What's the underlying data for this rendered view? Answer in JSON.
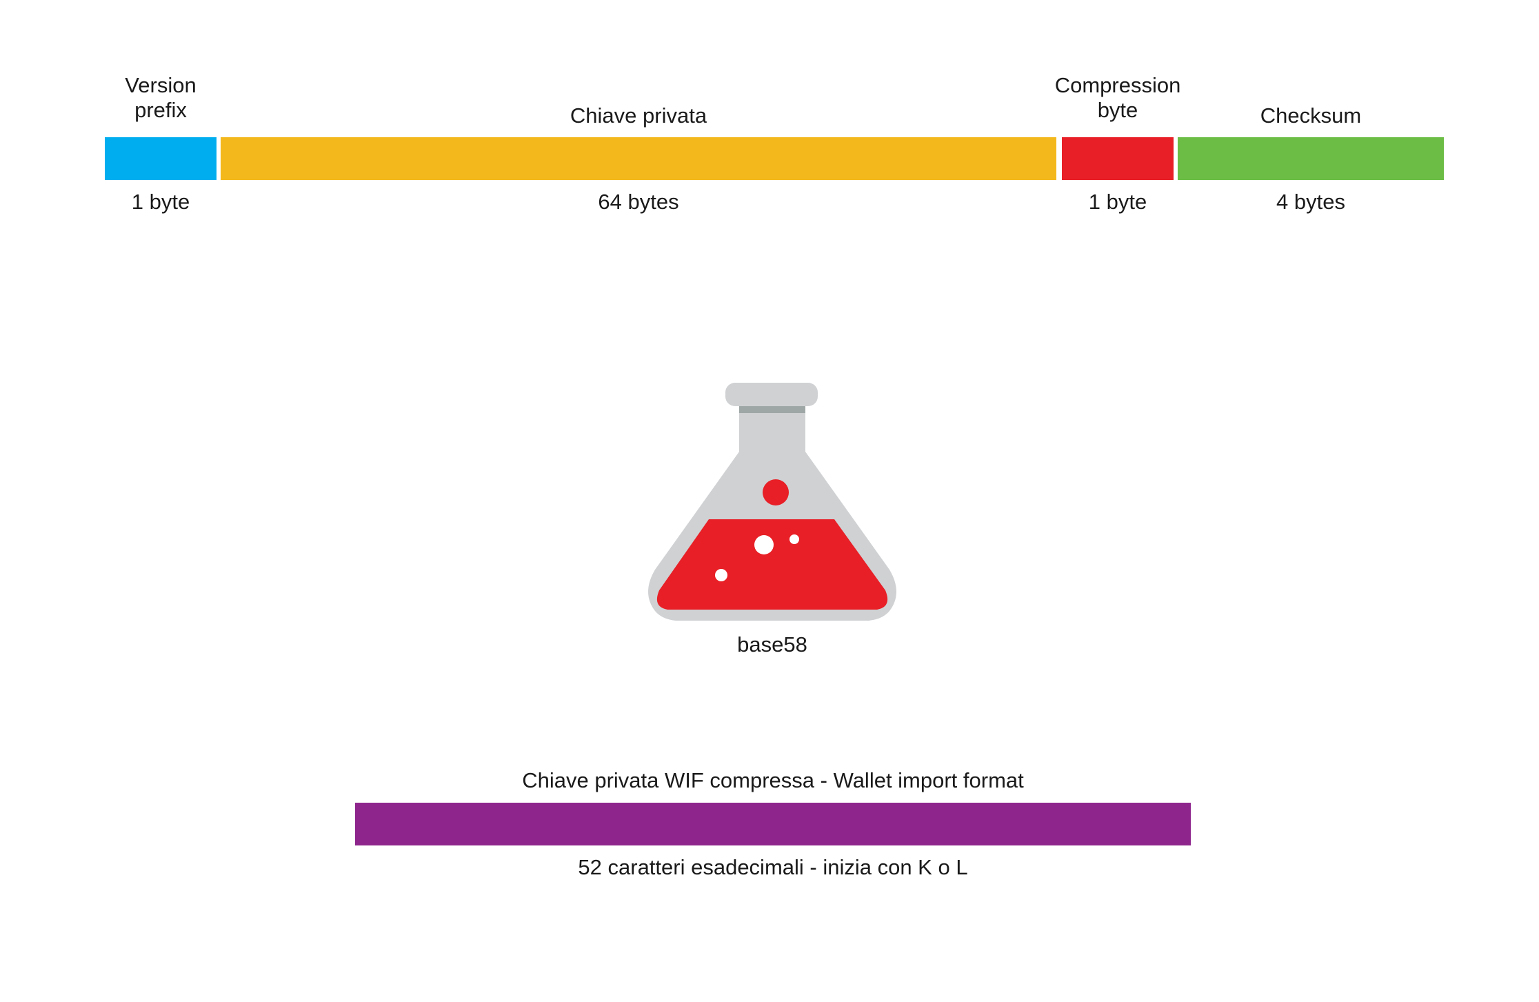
{
  "segments": [
    {
      "title": "Version\nprefix",
      "size": "1 byte",
      "color": "#00aeef"
    },
    {
      "title": "Chiave privata",
      "size": "64 bytes",
      "color": "#f3b81c"
    },
    {
      "title": "Compression\nbyte",
      "size": "1 byte",
      "color": "#e81f26"
    },
    {
      "title": "Checksum",
      "size": "4 bytes",
      "color": "#6bbd45"
    }
  ],
  "flask": {
    "label": "base58",
    "icon": "flask-icon",
    "liquid_color": "#e81f26",
    "glass_color": "#cfd1d3"
  },
  "result": {
    "title": "Chiave privata WIF compressa - Wallet import format",
    "description": "52 caratteri esadecimali - inizia con K o L",
    "color": "#8e258d"
  }
}
